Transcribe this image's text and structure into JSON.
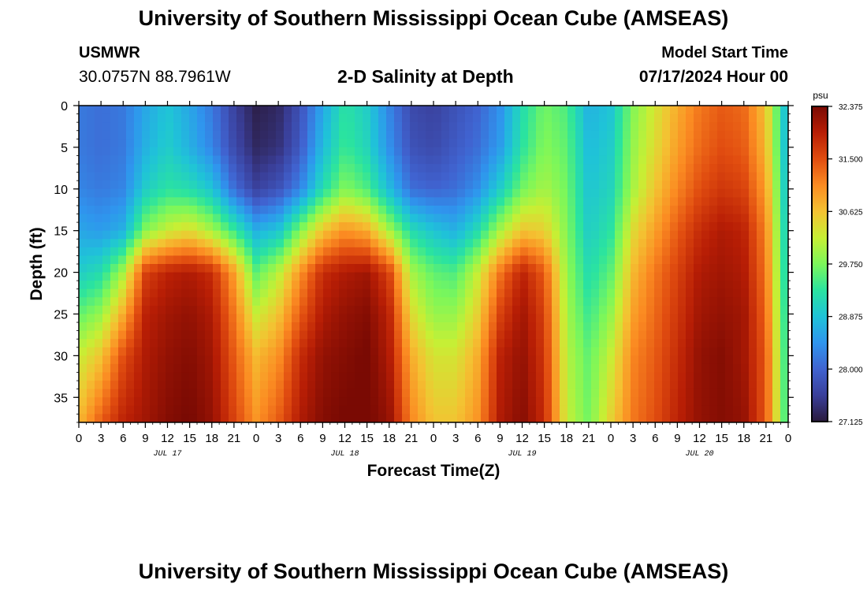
{
  "header": {
    "title": "University of Southern Mississippi Ocean Cube (AMSEAS)",
    "station": "USMWR",
    "coords": "30.0757N  88.7961W",
    "subtitle": "2-D Salinity at Depth",
    "model_label": "Model Start Time",
    "model_time": "07/17/2024 Hour 00"
  },
  "footer": {
    "title": "University of Southern Mississippi Ocean Cube (AMSEAS)"
  },
  "chart_data": {
    "type": "heatmap",
    "title": "2-D Salinity at Depth",
    "xlabel": "Forecast Time(Z)",
    "ylabel": "Depth (ft)",
    "colorbar_unit": "psu",
    "x_range_hours": [
      0,
      96
    ],
    "x_tick_labels": [
      "0",
      "3",
      "6",
      "9",
      "12",
      "15",
      "18",
      "21",
      "0",
      "3",
      "6",
      "9",
      "12",
      "15",
      "18",
      "21",
      "0",
      "3",
      "6",
      "9",
      "12",
      "15",
      "18",
      "21",
      "0",
      "3",
      "6",
      "9",
      "12",
      "15",
      "18",
      "21",
      "0"
    ],
    "x_tick_step_hours": 3,
    "day_labels": [
      {
        "label": "JUL 17",
        "hour": 12
      },
      {
        "label": "JUL 18",
        "hour": 36
      },
      {
        "label": "JUL 19",
        "hour": 60
      },
      {
        "label": "JUL 20",
        "hour": 84
      }
    ],
    "y_range_ft": [
      0,
      38
    ],
    "y_ticks": [
      0,
      5,
      10,
      15,
      20,
      25,
      30,
      35
    ],
    "colorbar_range": [
      27.125,
      32.375
    ],
    "colorbar_ticks": [
      "32.375",
      "31.500",
      "30.625",
      "29.750",
      "28.875",
      "28.000",
      "27.125"
    ],
    "colormap": [
      "#2a1a3c",
      "#3a3f9a",
      "#4063d0",
      "#2f95ee",
      "#1fc3d8",
      "#2ae3a0",
      "#7cf75a",
      "#c7ef34",
      "#f4c232",
      "#fb8b22",
      "#e14d10",
      "#b81e05",
      "#7a0a03"
    ],
    "depth_profile_levels_ft": [
      0,
      5,
      10,
      15,
      20,
      25,
      30,
      38
    ],
    "time_columns_hours": [
      0,
      3,
      6,
      9,
      12,
      15,
      18,
      21,
      24,
      27,
      30,
      33,
      36,
      39,
      42,
      45,
      48,
      51,
      54,
      57,
      60,
      63,
      66,
      69,
      72,
      75,
      78,
      81,
      84,
      87,
      90,
      93,
      96
    ],
    "salinity_psu": [
      [
        28.2,
        28.2,
        28.3,
        28.6,
        29.0,
        29.6,
        30.2,
        30.7
      ],
      [
        28.1,
        28.1,
        28.2,
        28.5,
        29.2,
        29.9,
        30.6,
        31.4
      ],
      [
        28.2,
        28.2,
        28.3,
        28.7,
        30.0,
        30.8,
        31.5,
        31.9
      ],
      [
        28.6,
        28.7,
        29.0,
        29.8,
        31.6,
        31.9,
        32.0,
        32.1
      ],
      [
        28.9,
        29.0,
        29.3,
        30.2,
        31.9,
        32.1,
        32.2,
        32.3
      ],
      [
        28.6,
        28.7,
        29.2,
        30.4,
        32.0,
        32.2,
        32.3,
        32.4
      ],
      [
        28.2,
        28.3,
        28.9,
        30.0,
        31.8,
        32.0,
        32.1,
        32.2
      ],
      [
        27.6,
        27.7,
        28.1,
        29.4,
        30.9,
        31.2,
        31.4,
        31.6
      ],
      [
        27.2,
        27.3,
        27.6,
        28.7,
        29.6,
        30.2,
        30.7,
        31.0
      ],
      [
        27.3,
        27.4,
        27.8,
        28.9,
        30.1,
        30.6,
        31.0,
        31.4
      ],
      [
        27.8,
        27.9,
        28.3,
        29.8,
        31.0,
        31.4,
        31.8,
        32.0
      ],
      [
        28.6,
        28.8,
        29.2,
        30.6,
        31.8,
        32.0,
        32.2,
        32.3
      ],
      [
        29.3,
        29.4,
        29.8,
        31.0,
        32.0,
        32.2,
        32.3,
        32.4
      ],
      [
        29.0,
        29.1,
        29.5,
        30.8,
        32.1,
        32.3,
        32.4,
        32.4
      ],
      [
        28.3,
        28.4,
        28.8,
        30.0,
        31.6,
        31.9,
        32.0,
        32.2
      ],
      [
        27.7,
        27.8,
        28.1,
        29.2,
        30.0,
        30.4,
        30.8,
        31.1
      ],
      [
        27.6,
        27.7,
        28.0,
        28.9,
        29.6,
        29.9,
        30.3,
        30.6
      ],
      [
        27.8,
        27.9,
        28.1,
        28.7,
        29.5,
        29.9,
        30.3,
        30.6
      ],
      [
        28.0,
        28.1,
        28.4,
        29.2,
        30.2,
        30.5,
        30.8,
        31.0
      ],
      [
        28.4,
        28.5,
        29.0,
        30.0,
        31.2,
        31.6,
        31.9,
        32.0
      ],
      [
        29.2,
        29.3,
        29.7,
        30.6,
        31.9,
        32.1,
        32.2,
        32.3
      ],
      [
        29.7,
        29.8,
        30.0,
        30.5,
        31.4,
        31.6,
        31.7,
        31.8
      ],
      [
        29.5,
        29.6,
        29.7,
        29.8,
        29.9,
        30.0,
        30.1,
        30.2
      ],
      [
        28.7,
        28.8,
        28.9,
        29.0,
        29.2,
        29.4,
        29.6,
        29.7
      ],
      [
        28.9,
        29.0,
        29.1,
        29.3,
        29.6,
        29.9,
        30.2,
        30.5
      ],
      [
        29.8,
        29.9,
        30.0,
        30.4,
        30.7,
        30.9,
        31.1,
        31.2
      ],
      [
        30.3,
        30.4,
        30.6,
        30.9,
        31.2,
        31.3,
        31.4,
        31.5
      ],
      [
        30.8,
        30.9,
        31.1,
        31.4,
        31.6,
        31.7,
        31.8,
        31.9
      ],
      [
        31.2,
        31.3,
        31.5,
        31.8,
        32.0,
        32.1,
        32.2,
        32.2
      ],
      [
        31.4,
        31.5,
        31.7,
        32.0,
        32.1,
        32.2,
        32.3,
        32.3
      ],
      [
        31.3,
        31.4,
        31.6,
        31.9,
        32.0,
        32.1,
        32.1,
        32.2
      ],
      [
        30.6,
        30.7,
        30.9,
        31.1,
        31.2,
        31.3,
        31.4,
        31.4
      ],
      [
        28.6,
        28.6,
        28.7,
        28.8,
        28.9,
        29.0,
        29.1,
        29.2
      ]
    ]
  }
}
